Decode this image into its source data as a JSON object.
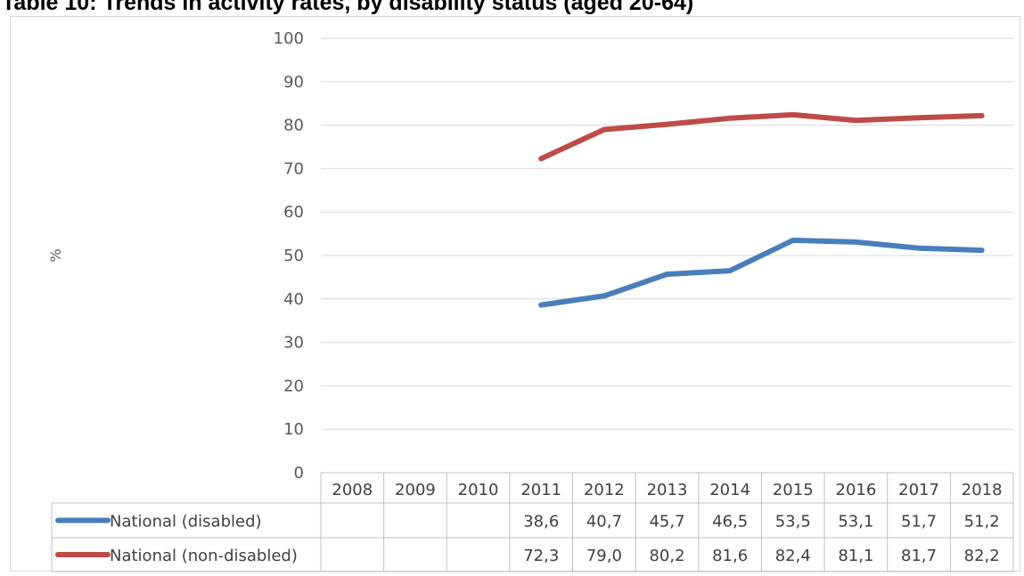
{
  "chart_data": {
    "type": "line",
    "title": "Table 10: Trends in activity rates, by disability status (aged 20-64)",
    "ylabel": "%",
    "xlabel": "",
    "ylim": [
      0,
      100
    ],
    "yticks": [
      0,
      10,
      20,
      30,
      40,
      50,
      60,
      70,
      80,
      90,
      100
    ],
    "grid": true,
    "legend": "table-bottom",
    "categories": [
      "2008",
      "2009",
      "2010",
      "2011",
      "2012",
      "2013",
      "2014",
      "2015",
      "2016",
      "2017",
      "2018"
    ],
    "series": [
      {
        "name": "National (disabled)",
        "color": "#4a7ebb",
        "values": [
          null,
          null,
          null,
          38.6,
          40.7,
          45.7,
          46.5,
          53.5,
          53.1,
          51.7,
          51.2
        ],
        "labels": [
          "",
          "",
          "",
          "38,6",
          "40,7",
          "45,7",
          "46,5",
          "53,5",
          "53,1",
          "51,7",
          "51,2"
        ]
      },
      {
        "name": "National (non-disabled)",
        "color": "#be4b48",
        "values": [
          null,
          null,
          null,
          72.3,
          79.0,
          80.2,
          81.6,
          82.4,
          81.1,
          81.7,
          82.2
        ],
        "labels": [
          "",
          "",
          "",
          "72,3",
          "79,0",
          "80,2",
          "81,6",
          "82,4",
          "81,1",
          "81,7",
          "82,2"
        ]
      }
    ]
  }
}
